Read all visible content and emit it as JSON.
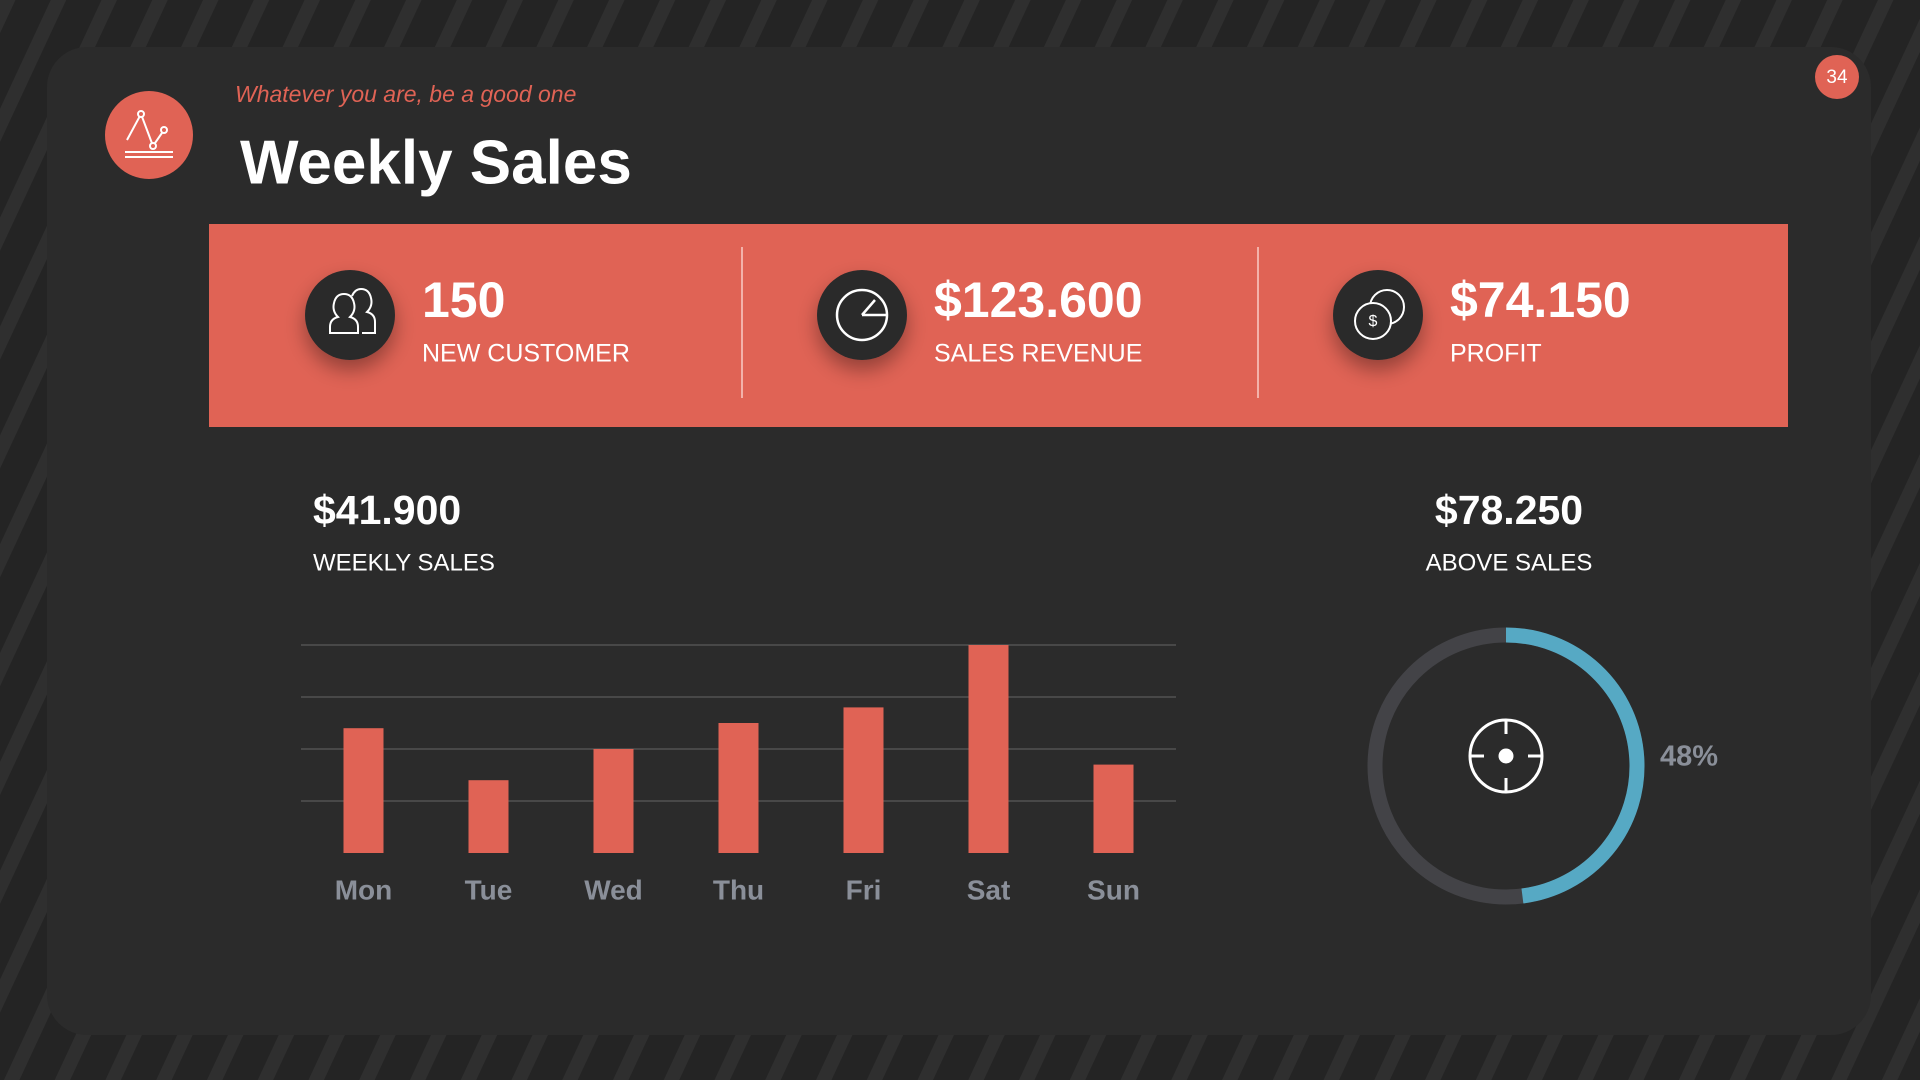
{
  "header": {
    "subtitle": "Whatever you are, be a good one",
    "title": "Weekly Sales",
    "page_number": "34"
  },
  "stats": [
    {
      "value": "150",
      "label": "NEW CUSTOMER"
    },
    {
      "value": "$123.600",
      "label": "SALES REVENUE"
    },
    {
      "value": "$74.150",
      "label": "PROFIT"
    }
  ],
  "chart_data": [
    {
      "type": "bar",
      "title": "$41.900",
      "subtitle": "WEEKLY SALES",
      "categories": [
        "Mon",
        "Tue",
        "Wed",
        "Thu",
        "Fri",
        "Sat",
        "Sun"
      ],
      "values": [
        2.4,
        1.4,
        2.0,
        2.5,
        2.8,
        4.0,
        1.7
      ],
      "color": "#e06355",
      "ylim": [
        0,
        4
      ],
      "yticks": [
        1,
        2,
        3,
        4
      ],
      "grid": true
    },
    {
      "type": "donut",
      "title": "$78.250",
      "subtitle": "ABOVE SALES",
      "values": [
        48
      ],
      "value_labels": [
        "48%"
      ],
      "color": "#56a9c4",
      "track_color": "#434347"
    }
  ]
}
